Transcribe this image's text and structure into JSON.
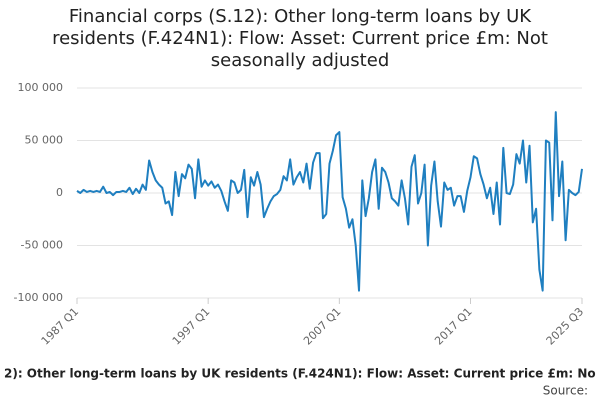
{
  "chart_data": {
    "type": "line",
    "title": "Financial corps (S.12): Other long-term loans by UK residents (F.424N1): Flow: Asset: Current price £m: Not seasonally adjusted",
    "categories": [
      "1987 Q1",
      null,
      null,
      null,
      null,
      null,
      null,
      null,
      null,
      null,
      null,
      null,
      null,
      null,
      null,
      null,
      null,
      null,
      null,
      null,
      null,
      null,
      null,
      null,
      null,
      null,
      null,
      null,
      null,
      null,
      null,
      null,
      null,
      null,
      null,
      null,
      null,
      null,
      null,
      null,
      "1997 Q1",
      null,
      null,
      null,
      null,
      null,
      null,
      null,
      null,
      null,
      null,
      null,
      null,
      null,
      null,
      null,
      null,
      null,
      null,
      null,
      null,
      null,
      null,
      null,
      null,
      null,
      null,
      null,
      null,
      null,
      null,
      null,
      null,
      null,
      null,
      null,
      null,
      null,
      null,
      null,
      "2007 Q1",
      null,
      null,
      null,
      null,
      null,
      null,
      null,
      null,
      null,
      null,
      null,
      null,
      null,
      null,
      null,
      null,
      null,
      null,
      null,
      null,
      null,
      null,
      null,
      null,
      null,
      null,
      null,
      null,
      null,
      null,
      null,
      null,
      null,
      null,
      null,
      null,
      null,
      null,
      null,
      "2017 Q1",
      null,
      null,
      null,
      null,
      null,
      null,
      null,
      null,
      null,
      null,
      null,
      null,
      null,
      null,
      null,
      null,
      null,
      null,
      null,
      null,
      null,
      null,
      null,
      null,
      null,
      null,
      null,
      null,
      null,
      null,
      null,
      null,
      null,
      "2025 Q3"
    ],
    "series": [
      {
        "color": "#1f7fc0",
        "values": [
          2000,
          0,
          3000,
          1000,
          2000,
          1000,
          2000,
          1000,
          6000,
          0,
          1000,
          -2000,
          1000,
          1000,
          2000,
          1000,
          5000,
          -1000,
          4000,
          0,
          8000,
          3000,
          31000,
          20000,
          12000,
          8000,
          5000,
          -10000,
          -8000,
          -21000,
          20000,
          -3000,
          18000,
          14000,
          27000,
          23000,
          -5000,
          32000,
          6000,
          12000,
          7000,
          11000,
          5000,
          8000,
          2000,
          -8000,
          -17000,
          12000,
          10000,
          0,
          3000,
          22000,
          -23000,
          15000,
          7000,
          20000,
          8000,
          -23000,
          -15000,
          -8000,
          -3000,
          -1000,
          3000,
          16000,
          12000,
          32000,
          8000,
          15000,
          20000,
          10000,
          28000,
          4000,
          29000,
          38000,
          38000,
          -24000,
          -20000,
          28000,
          40000,
          55000,
          58000,
          -4000,
          -15000,
          -33000,
          -25000,
          -50000,
          -93000,
          12000,
          -22000,
          -5000,
          20000,
          32000,
          -15000,
          24000,
          20000,
          10000,
          -5000,
          -8000,
          -12000,
          12000,
          -5000,
          -30000,
          25000,
          36000,
          -10000,
          0,
          27000,
          -50000,
          7000,
          30000,
          -8000,
          -32000,
          10000,
          3000,
          5000,
          -12000,
          -3000,
          -3000,
          -18000,
          2000,
          15000,
          35000,
          33000,
          18000,
          8000,
          -5000,
          5000,
          -20000,
          10000,
          -30000,
          43000,
          0,
          -1000,
          8000,
          37000,
          28000,
          50000,
          10000,
          45000,
          -28000,
          -15000,
          -73000,
          -93000,
          50000,
          48000,
          -26000,
          77000,
          -3000,
          30000,
          -45000,
          3000,
          0,
          -2000,
          1000,
          23000
        ]
      }
    ],
    "ylim": [
      -100000,
      100000
    ],
    "yticks": [
      {
        "value": -100000,
        "label": "-100 000"
      },
      {
        "value": -50000,
        "label": "-50 000"
      },
      0,
      {
        "value": 50000,
        "label": "50 000"
      },
      {
        "value": 100000,
        "label": "100 000"
      }
    ],
    "grid": true
  },
  "footer": {
    "caption": "2): Other long-term loans by UK residents (F.424N1): Flow: Asset: Current price £m: No",
    "source": "Source:"
  }
}
